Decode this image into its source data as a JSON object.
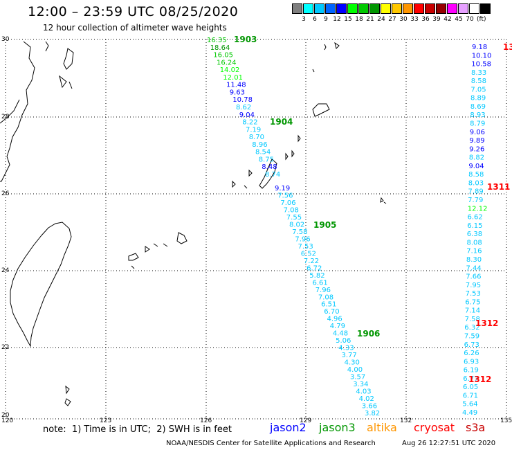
{
  "header": {
    "title": "12:00 – 23:59 UTC 08/25/2020",
    "subtitle": "12 hour collection of altimeter wave heights"
  },
  "legend": {
    "colors": [
      "#7f7f7f",
      "#00ffff",
      "#00c8ff",
      "#0064ff",
      "#0000ff",
      "#00ff00",
      "#00c800",
      "#009600",
      "#ffff00",
      "#ffc800",
      "#ff9600",
      "#ff0000",
      "#c80000",
      "#960000",
      "#ff00ff",
      "#e6a0ff",
      "#ffffff",
      "#000000"
    ],
    "labels": [
      "3",
      "6",
      "9",
      "12",
      "15",
      "18",
      "21",
      "24",
      "27",
      "30",
      "33",
      "36",
      "39",
      "42",
      "45",
      "70"
    ],
    "unit": "(ft)"
  },
  "map": {
    "lon_ticks": [
      "120",
      "123",
      "126",
      "129",
      "132",
      "135"
    ],
    "lat_ticks": [
      "30",
      "28",
      "26",
      "24",
      "22",
      "20"
    ]
  },
  "tracks": {
    "jason3_a": [
      {
        "t": "16.35",
        "c": "#00c800"
      },
      {
        "t": "18.64",
        "c": "#009600"
      },
      {
        "t": "16.05",
        "c": "#00c800"
      },
      {
        "t": "16.24",
        "c": "#00c800"
      },
      {
        "t": "14.02",
        "c": "#00ff00"
      },
      {
        "t": "12.01",
        "c": "#00ff00"
      },
      {
        "t": "11.48",
        "c": "#0000ff"
      },
      {
        "t": "9.63",
        "c": "#0000ff"
      },
      {
        "t": "10.78",
        "c": "#0000ff"
      },
      {
        "t": "8.62",
        "c": "#00c8ff"
      },
      {
        "t": "9.04",
        "c": "#0000ff"
      },
      {
        "t": "8.22",
        "c": "#00c8ff"
      },
      {
        "t": "7.19",
        "c": "#00c8ff"
      },
      {
        "t": "8.70",
        "c": "#00c8ff"
      },
      {
        "t": "8.96",
        "c": "#00c8ff"
      },
      {
        "t": "8.54",
        "c": "#00c8ff"
      },
      {
        "t": "8.75",
        "c": "#00c8ff"
      },
      {
        "t": "8.48",
        "c": "#0000ff"
      },
      {
        "t": "8.74",
        "c": "#00c8ff"
      }
    ],
    "jason3_b": [
      {
        "t": "9.19",
        "c": "#0000ff"
      },
      {
        "t": "7.56",
        "c": "#00c8ff"
      },
      {
        "t": "7.06",
        "c": "#00c8ff"
      },
      {
        "t": "7.08",
        "c": "#00c8ff"
      },
      {
        "t": "7.55",
        "c": "#00c8ff"
      },
      {
        "t": "8.02",
        "c": "#00c8ff"
      },
      {
        "t": "7.58",
        "c": "#00c8ff"
      },
      {
        "t": "7.96",
        "c": "#00c8ff"
      },
      {
        "t": "7.53",
        "c": "#00c8ff"
      },
      {
        "t": "6.52",
        "c": "#00c8ff"
      },
      {
        "t": "7.22",
        "c": "#00c8ff"
      },
      {
        "t": "6.72",
        "c": "#00c8ff"
      },
      {
        "t": "5.82",
        "c": "#00c8ff"
      },
      {
        "t": "6.61",
        "c": "#00c8ff"
      },
      {
        "t": "7.96",
        "c": "#00c8ff"
      },
      {
        "t": "7.08",
        "c": "#00c8ff"
      },
      {
        "t": "6.51",
        "c": "#00c8ff"
      },
      {
        "t": "6.70",
        "c": "#00c8ff"
      },
      {
        "t": "4.96",
        "c": "#00c8ff"
      },
      {
        "t": "4.79",
        "c": "#00c8ff"
      },
      {
        "t": "4.48",
        "c": "#00c8ff"
      },
      {
        "t": "5.06",
        "c": "#00c8ff"
      },
      {
        "t": "4.33",
        "c": "#00c8ff"
      },
      {
        "t": "3.77",
        "c": "#00c8ff"
      },
      {
        "t": "4.30",
        "c": "#00c8ff"
      },
      {
        "t": "4.00",
        "c": "#00c8ff"
      },
      {
        "t": "3.57",
        "c": "#00c8ff"
      },
      {
        "t": "3.34",
        "c": "#00c8ff"
      },
      {
        "t": "4.03",
        "c": "#00c8ff"
      },
      {
        "t": "4.02",
        "c": "#00c8ff"
      },
      {
        "t": "3.66",
        "c": "#00c8ff"
      },
      {
        "t": "3.82",
        "c": "#00c8ff"
      }
    ],
    "cryosat": [
      {
        "t": "9.18",
        "c": "#0000ff"
      },
      {
        "t": "10.10",
        "c": "#0000ff"
      },
      {
        "t": "10.58",
        "c": "#0000ff"
      },
      {
        "t": "8.33",
        "c": "#00c8ff"
      },
      {
        "t": "8.58",
        "c": "#00c8ff"
      },
      {
        "t": "7.05",
        "c": "#00c8ff"
      },
      {
        "t": "8.89",
        "c": "#00c8ff"
      },
      {
        "t": "8.69",
        "c": "#00c8ff"
      },
      {
        "t": "8.93",
        "c": "#00c8ff"
      },
      {
        "t": "8.79",
        "c": "#00c8ff"
      },
      {
        "t": "9.06",
        "c": "#0000ff"
      },
      {
        "t": "9.89",
        "c": "#0000ff"
      },
      {
        "t": "9.26",
        "c": "#0000ff"
      },
      {
        "t": "8.82",
        "c": "#00c8ff"
      },
      {
        "t": "9.04",
        "c": "#0000ff"
      },
      {
        "t": "8.58",
        "c": "#00c8ff"
      },
      {
        "t": "8.03",
        "c": "#00c8ff"
      },
      {
        "t": "7.89",
        "c": "#00c8ff"
      },
      {
        "t": "7.79",
        "c": "#00c8ff"
      },
      {
        "t": "12.12",
        "c": "#00ff00"
      },
      {
        "t": "6.62",
        "c": "#00c8ff"
      },
      {
        "t": "6.15",
        "c": "#00c8ff"
      },
      {
        "t": "6.38",
        "c": "#00c8ff"
      },
      {
        "t": "8.08",
        "c": "#00c8ff"
      },
      {
        "t": "7.16",
        "c": "#00c8ff"
      },
      {
        "t": "8.30",
        "c": "#00c8ff"
      },
      {
        "t": "7.44",
        "c": "#00c8ff"
      },
      {
        "t": "7.66",
        "c": "#00c8ff"
      },
      {
        "t": "7.95",
        "c": "#00c8ff"
      },
      {
        "t": "7.53",
        "c": "#00c8ff"
      },
      {
        "t": "6.75",
        "c": "#00c8ff"
      },
      {
        "t": "7.14",
        "c": "#00c8ff"
      },
      {
        "t": "7.58",
        "c": "#00c8ff"
      },
      {
        "t": "6.32",
        "c": "#00c8ff"
      },
      {
        "t": "7.59",
        "c": "#00c8ff"
      },
      {
        "t": "6.73",
        "c": "#00c8ff"
      },
      {
        "t": "6.26",
        "c": "#00c8ff"
      },
      {
        "t": "6.93",
        "c": "#00c8ff"
      },
      {
        "t": "6.19",
        "c": "#00c8ff"
      },
      {
        "t": "6.77",
        "c": "#00c8ff"
      },
      {
        "t": "6.05",
        "c": "#00c8ff"
      },
      {
        "t": "6.71",
        "c": "#00c8ff"
      },
      {
        "t": "5.64",
        "c": "#00c8ff"
      },
      {
        "t": "4.49",
        "c": "#00c8ff"
      }
    ]
  },
  "time_labels": {
    "j3": [
      "1903",
      "1904",
      "1905",
      "1906"
    ],
    "cs": [
      "13",
      "1311",
      "1312",
      "1312"
    ],
    "j3_color": "#009600",
    "cs_color": "#ff0000"
  },
  "footer": {
    "note": "note:  1) Time is in UTC;  2) SWH is in feet",
    "satellites": [
      {
        "name": "jason2",
        "color": "#0000ff"
      },
      {
        "name": "jason3",
        "color": "#009600"
      },
      {
        "name": "altika",
        "color": "#ff9600"
      },
      {
        "name": "cryosat",
        "color": "#ff0000"
      },
      {
        "name": "s3a",
        "color": "#c80000"
      }
    ],
    "credit": "NOAA/NESDIS Center for Satellite Applications and Research",
    "timestamp": "Aug 26 12:27:51 UTC 2020"
  }
}
